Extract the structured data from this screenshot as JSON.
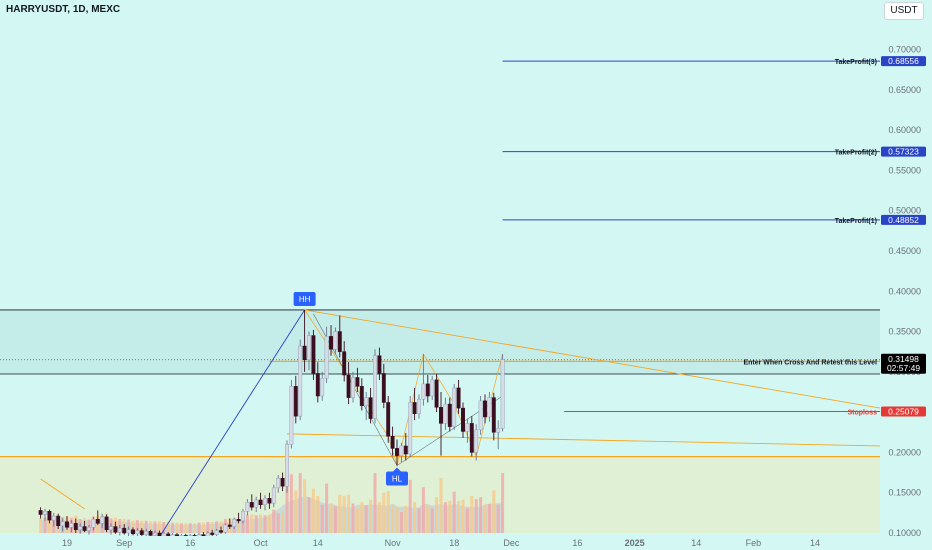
{
  "header": {
    "symbol_title": "HARRYUSDT, 1D, MEXC",
    "currency_label": "USDT"
  },
  "chart_data": {
    "type": "candlestick",
    "symbol": "HARRYUSDT",
    "interval": "1D",
    "exchange": "MEXC",
    "currency": "USDT",
    "y_axis": {
      "ylim": [
        0.1,
        0.72
      ],
      "tick_labels": [
        "0.70000",
        "0.65000",
        "0.60000",
        "0.55000",
        "0.50000",
        "0.45000",
        "0.40000",
        "0.35000",
        "0.30000",
        "0.25000",
        "0.20000",
        "0.15000",
        "0.10000"
      ],
      "tick_values": [
        0.7,
        0.65,
        0.6,
        0.55,
        0.5,
        0.45,
        0.4,
        0.35,
        0.3,
        0.25,
        0.2,
        0.15,
        0.1
      ]
    },
    "x_axis": {
      "tick_labels": [
        "19",
        "Sep",
        "16",
        "Oct",
        "14",
        "Nov",
        "18",
        "Dec",
        "16",
        "2025",
        "14",
        "Feb",
        "14"
      ],
      "tick_days": [
        -40,
        -27,
        -12,
        4,
        17,
        34,
        48,
        61,
        76,
        89,
        103,
        116,
        130
      ],
      "start_day": -46,
      "end_day": 135
    },
    "current_price": {
      "value": "0.31498",
      "timer": "02:57:49",
      "color": "#000000"
    },
    "levels": [
      {
        "name": "TakeProfit(3)",
        "price": 0.68556,
        "label": "0.68556",
        "color": "#2a44c8",
        "from_day": 59
      },
      {
        "name": "TakeProfit(2)",
        "price": 0.57323,
        "label": "0.57323",
        "color": "#2a44c8",
        "from_day": 59
      },
      {
        "name": "TakeProfit(1)",
        "price": 0.48852,
        "label": "0.48852",
        "color": "#2a44c8",
        "from_day": 59
      },
      {
        "name": "Stoploss",
        "price": 0.25079,
        "label": "0.25079",
        "color": "#e53935",
        "from_day": 73
      }
    ],
    "entry_level": {
      "text": "Enter When Cross And Retest this Level",
      "price": 0.30939,
      "label": "0.30939",
      "color": "#f5a623"
    },
    "zones": [
      {
        "top": 0.3768,
        "bottom": 0.2973,
        "color": "#c4ece9"
      },
      {
        "top": 0.1948,
        "bottom": 0.1,
        "color": "#dff0d4"
      }
    ],
    "markers": [
      {
        "text": "HH",
        "day": 14,
        "price": 0.3768,
        "position": "above",
        "color": "#2962ff"
      },
      {
        "text": "HL",
        "day": 35,
        "price": 0.1838,
        "position": "below",
        "color": "#2962ff"
      }
    ],
    "candles": [
      {
        "day": -46,
        "o": 0.128,
        "h": 0.132,
        "l": 0.118,
        "c": 0.123
      },
      {
        "day": -45,
        "o": 0.123,
        "h": 0.13,
        "l": 0.115,
        "c": 0.127
      },
      {
        "day": -44,
        "o": 0.127,
        "h": 0.129,
        "l": 0.112,
        "c": 0.116
      },
      {
        "day": -43,
        "o": 0.116,
        "h": 0.125,
        "l": 0.108,
        "c": 0.121
      },
      {
        "day": -42,
        "o": 0.121,
        "h": 0.124,
        "l": 0.105,
        "c": 0.109
      },
      {
        "day": -41,
        "o": 0.109,
        "h": 0.118,
        "l": 0.102,
        "c": 0.114
      },
      {
        "day": -40,
        "o": 0.114,
        "h": 0.121,
        "l": 0.104,
        "c": 0.107
      },
      {
        "day": -39,
        "o": 0.107,
        "h": 0.116,
        "l": 0.101,
        "c": 0.112
      },
      {
        "day": -38,
        "o": 0.112,
        "h": 0.118,
        "l": 0.1,
        "c": 0.104
      },
      {
        "day": -37,
        "o": 0.104,
        "h": 0.112,
        "l": 0.099,
        "c": 0.108
      },
      {
        "day": -36,
        "o": 0.108,
        "h": 0.115,
        "l": 0.101,
        "c": 0.103
      },
      {
        "day": -35,
        "o": 0.103,
        "h": 0.11,
        "l": 0.098,
        "c": 0.107
      },
      {
        "day": -34,
        "o": 0.107,
        "h": 0.12,
        "l": 0.103,
        "c": 0.117
      },
      {
        "day": -33,
        "o": 0.117,
        "h": 0.128,
        "l": 0.11,
        "c": 0.112
      },
      {
        "day": -32,
        "o": 0.112,
        "h": 0.124,
        "l": 0.106,
        "c": 0.12
      },
      {
        "day": -31,
        "o": 0.12,
        "h": 0.123,
        "l": 0.101,
        "c": 0.104
      },
      {
        "day": -30,
        "o": 0.104,
        "h": 0.112,
        "l": 0.098,
        "c": 0.108
      },
      {
        "day": -29,
        "o": 0.108,
        "h": 0.114,
        "l": 0.099,
        "c": 0.101
      },
      {
        "day": -28,
        "o": 0.101,
        "h": 0.11,
        "l": 0.097,
        "c": 0.106
      },
      {
        "day": -27,
        "o": 0.106,
        "h": 0.111,
        "l": 0.098,
        "c": 0.1
      },
      {
        "day": -26,
        "o": 0.1,
        "h": 0.108,
        "l": 0.096,
        "c": 0.104
      },
      {
        "day": -25,
        "o": 0.104,
        "h": 0.107,
        "l": 0.097,
        "c": 0.099
      },
      {
        "day": -24,
        "o": 0.099,
        "h": 0.106,
        "l": 0.095,
        "c": 0.103
      },
      {
        "day": -23,
        "o": 0.103,
        "h": 0.106,
        "l": 0.096,
        "c": 0.098
      },
      {
        "day": -22,
        "o": 0.098,
        "h": 0.105,
        "l": 0.095,
        "c": 0.102
      },
      {
        "day": -21,
        "o": 0.102,
        "h": 0.104,
        "l": 0.095,
        "c": 0.097
      },
      {
        "day": -20,
        "o": 0.097,
        "h": 0.103,
        "l": 0.094,
        "c": 0.1
      },
      {
        "day": -19,
        "o": 0.1,
        "h": 0.103,
        "l": 0.094,
        "c": 0.096
      },
      {
        "day": -18,
        "o": 0.096,
        "h": 0.102,
        "l": 0.094,
        "c": 0.099
      },
      {
        "day": -17,
        "o": 0.099,
        "h": 0.101,
        "l": 0.093,
        "c": 0.095
      },
      {
        "day": -16,
        "o": 0.095,
        "h": 0.1,
        "l": 0.093,
        "c": 0.098
      },
      {
        "day": -15,
        "o": 0.098,
        "h": 0.1,
        "l": 0.093,
        "c": 0.095
      },
      {
        "day": -14,
        "o": 0.095,
        "h": 0.099,
        "l": 0.093,
        "c": 0.097
      },
      {
        "day": -13,
        "o": 0.097,
        "h": 0.099,
        "l": 0.093,
        "c": 0.094
      },
      {
        "day": -12,
        "o": 0.094,
        "h": 0.099,
        "l": 0.093,
        "c": 0.097
      },
      {
        "day": -11,
        "o": 0.097,
        "h": 0.099,
        "l": 0.093,
        "c": 0.095
      },
      {
        "day": -10,
        "o": 0.095,
        "h": 0.1,
        "l": 0.093,
        "c": 0.098
      },
      {
        "day": -9,
        "o": 0.098,
        "h": 0.101,
        "l": 0.094,
        "c": 0.096
      },
      {
        "day": -8,
        "o": 0.096,
        "h": 0.102,
        "l": 0.094,
        "c": 0.1
      },
      {
        "day": -7,
        "o": 0.1,
        "h": 0.104,
        "l": 0.096,
        "c": 0.098
      },
      {
        "day": -6,
        "o": 0.098,
        "h": 0.105,
        "l": 0.096,
        "c": 0.103
      },
      {
        "day": -5,
        "o": 0.103,
        "h": 0.108,
        "l": 0.099,
        "c": 0.101
      },
      {
        "day": -4,
        "o": 0.101,
        "h": 0.112,
        "l": 0.099,
        "c": 0.11
      },
      {
        "day": -3,
        "o": 0.11,
        "h": 0.118,
        "l": 0.105,
        "c": 0.108
      },
      {
        "day": -2,
        "o": 0.108,
        "h": 0.119,
        "l": 0.105,
        "c": 0.117
      },
      {
        "day": -1,
        "o": 0.117,
        "h": 0.125,
        "l": 0.112,
        "c": 0.115
      },
      {
        "day": 0,
        "o": 0.115,
        "h": 0.13,
        "l": 0.112,
        "c": 0.127
      },
      {
        "day": 1,
        "o": 0.127,
        "h": 0.142,
        "l": 0.122,
        "c": 0.138
      },
      {
        "day": 2,
        "o": 0.138,
        "h": 0.148,
        "l": 0.128,
        "c": 0.132
      },
      {
        "day": 3,
        "o": 0.132,
        "h": 0.145,
        "l": 0.126,
        "c": 0.141
      },
      {
        "day": 4,
        "o": 0.141,
        "h": 0.15,
        "l": 0.13,
        "c": 0.135
      },
      {
        "day": 5,
        "o": 0.135,
        "h": 0.147,
        "l": 0.128,
        "c": 0.143
      },
      {
        "day": 6,
        "o": 0.143,
        "h": 0.15,
        "l": 0.13,
        "c": 0.137
      },
      {
        "day": 7,
        "o": 0.137,
        "h": 0.16,
        "l": 0.132,
        "c": 0.156
      },
      {
        "day": 8,
        "o": 0.156,
        "h": 0.172,
        "l": 0.15,
        "c": 0.168
      },
      {
        "day": 9,
        "o": 0.168,
        "h": 0.175,
        "l": 0.152,
        "c": 0.158
      },
      {
        "day": 10,
        "o": 0.158,
        "h": 0.215,
        "l": 0.15,
        "c": 0.21
      },
      {
        "day": 11,
        "o": 0.21,
        "h": 0.29,
        "l": 0.205,
        "c": 0.282
      },
      {
        "day": 12,
        "o": 0.282,
        "h": 0.295,
        "l": 0.236,
        "c": 0.245
      },
      {
        "day": 13,
        "o": 0.245,
        "h": 0.34,
        "l": 0.24,
        "c": 0.332
      },
      {
        "day": 14,
        "o": 0.332,
        "h": 0.3768,
        "l": 0.3,
        "c": 0.315
      },
      {
        "day": 15,
        "o": 0.315,
        "h": 0.35,
        "l": 0.302,
        "c": 0.345
      },
      {
        "day": 16,
        "o": 0.345,
        "h": 0.352,
        "l": 0.29,
        "c": 0.298
      },
      {
        "day": 17,
        "o": 0.298,
        "h": 0.312,
        "l": 0.262,
        "c": 0.27
      },
      {
        "day": 18,
        "o": 0.27,
        "h": 0.3,
        "l": 0.264,
        "c": 0.292
      },
      {
        "day": 19,
        "o": 0.292,
        "h": 0.356,
        "l": 0.286,
        "c": 0.344
      },
      {
        "day": 20,
        "o": 0.344,
        "h": 0.358,
        "l": 0.32,
        "c": 0.328
      },
      {
        "day": 21,
        "o": 0.328,
        "h": 0.355,
        "l": 0.322,
        "c": 0.35
      },
      {
        "day": 22,
        "o": 0.35,
        "h": 0.37,
        "l": 0.318,
        "c": 0.325
      },
      {
        "day": 23,
        "o": 0.325,
        "h": 0.338,
        "l": 0.288,
        "c": 0.296
      },
      {
        "day": 24,
        "o": 0.296,
        "h": 0.312,
        "l": 0.26,
        "c": 0.268
      },
      {
        "day": 25,
        "o": 0.268,
        "h": 0.3,
        "l": 0.262,
        "c": 0.293
      },
      {
        "day": 26,
        "o": 0.293,
        "h": 0.305,
        "l": 0.275,
        "c": 0.282
      },
      {
        "day": 27,
        "o": 0.282,
        "h": 0.292,
        "l": 0.252,
        "c": 0.258
      },
      {
        "day": 28,
        "o": 0.258,
        "h": 0.275,
        "l": 0.24,
        "c": 0.268
      },
      {
        "day": 29,
        "o": 0.268,
        "h": 0.28,
        "l": 0.236,
        "c": 0.242
      },
      {
        "day": 30,
        "o": 0.242,
        "h": 0.328,
        "l": 0.236,
        "c": 0.32
      },
      {
        "day": 31,
        "o": 0.32,
        "h": 0.33,
        "l": 0.29,
        "c": 0.298
      },
      {
        "day": 32,
        "o": 0.298,
        "h": 0.31,
        "l": 0.255,
        "c": 0.262
      },
      {
        "day": 33,
        "o": 0.262,
        "h": 0.27,
        "l": 0.212,
        "c": 0.22
      },
      {
        "day": 34,
        "o": 0.22,
        "h": 0.232,
        "l": 0.196,
        "c": 0.205
      },
      {
        "day": 35,
        "o": 0.205,
        "h": 0.216,
        "l": 0.1838,
        "c": 0.196
      },
      {
        "day": 36,
        "o": 0.196,
        "h": 0.212,
        "l": 0.188,
        "c": 0.208
      },
      {
        "day": 37,
        "o": 0.208,
        "h": 0.224,
        "l": 0.19,
        "c": 0.198
      },
      {
        "day": 38,
        "o": 0.198,
        "h": 0.27,
        "l": 0.194,
        "c": 0.262
      },
      {
        "day": 39,
        "o": 0.262,
        "h": 0.28,
        "l": 0.24,
        "c": 0.248
      },
      {
        "day": 40,
        "o": 0.248,
        "h": 0.272,
        "l": 0.242,
        "c": 0.266
      },
      {
        "day": 41,
        "o": 0.266,
        "h": 0.322,
        "l": 0.258,
        "c": 0.285
      },
      {
        "day": 42,
        "o": 0.285,
        "h": 0.296,
        "l": 0.262,
        "c": 0.27
      },
      {
        "day": 43,
        "o": 0.27,
        "h": 0.295,
        "l": 0.265,
        "c": 0.29
      },
      {
        "day": 44,
        "o": 0.29,
        "h": 0.298,
        "l": 0.25,
        "c": 0.256
      },
      {
        "day": 45,
        "o": 0.256,
        "h": 0.275,
        "l": 0.196,
        "c": 0.236
      },
      {
        "day": 46,
        "o": 0.236,
        "h": 0.268,
        "l": 0.228,
        "c": 0.26
      },
      {
        "day": 47,
        "o": 0.26,
        "h": 0.268,
        "l": 0.226,
        "c": 0.232
      },
      {
        "day": 48,
        "o": 0.232,
        "h": 0.285,
        "l": 0.228,
        "c": 0.28
      },
      {
        "day": 49,
        "o": 0.28,
        "h": 0.29,
        "l": 0.248,
        "c": 0.255
      },
      {
        "day": 50,
        "o": 0.255,
        "h": 0.262,
        "l": 0.218,
        "c": 0.226
      },
      {
        "day": 51,
        "o": 0.226,
        "h": 0.242,
        "l": 0.212,
        "c": 0.236
      },
      {
        "day": 52,
        "o": 0.236,
        "h": 0.245,
        "l": 0.195,
        "c": 0.2
      },
      {
        "day": 53,
        "o": 0.2,
        "h": 0.235,
        "l": 0.19,
        "c": 0.228
      },
      {
        "day": 54,
        "o": 0.228,
        "h": 0.27,
        "l": 0.222,
        "c": 0.264
      },
      {
        "day": 55,
        "o": 0.264,
        "h": 0.272,
        "l": 0.236,
        "c": 0.244
      },
      {
        "day": 56,
        "o": 0.244,
        "h": 0.275,
        "l": 0.238,
        "c": 0.268
      },
      {
        "day": 57,
        "o": 0.268,
        "h": 0.274,
        "l": 0.215,
        "c": 0.225
      },
      {
        "day": 58,
        "o": 0.225,
        "h": 0.24,
        "l": 0.204,
        "c": 0.23
      },
      {
        "day": 59,
        "o": 0.23,
        "h": 0.322,
        "l": 0.226,
        "c": 0.31498
      }
    ]
  }
}
